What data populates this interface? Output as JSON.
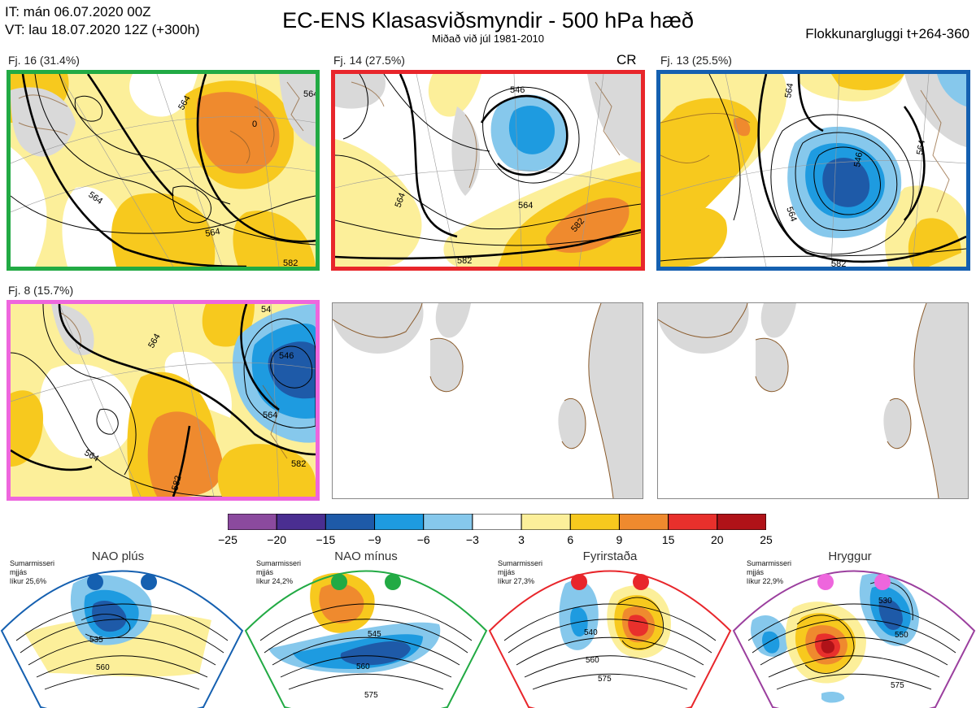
{
  "header": {
    "init_time": "IT: mán 06.07.2020 00Z",
    "valid_time": "VT: lau 18.07.2020 12Z  (+300h)",
    "title": "EC-ENS Klasasviðsmyndir - 500 hPa hæð",
    "subtitle": "Miðað við júl 1981-2010",
    "window": "Flokkunargluggi t+264-360"
  },
  "clusters": [
    {
      "label": "Fj. 16 (31.4%)",
      "color": "#22aa44",
      "contours": [
        "564",
        "564",
        "564",
        "564",
        "582",
        "0"
      ]
    },
    {
      "label": "Fj. 14 (27.5%)",
      "color": "#e8262b",
      "contours": [
        "546",
        "564",
        "564",
        "582",
        "582"
      ],
      "tag": "CR"
    },
    {
      "label": "Fj. 13 (25.5%)",
      "color": "#1560b0",
      "contours": [
        "564",
        "546",
        "564",
        "564",
        "582"
      ]
    },
    {
      "label": "Fj. 8 (15.7%)",
      "color": "#ee66dd",
      "contours": [
        "564",
        "546",
        "564",
        "564",
        "582",
        "582",
        "54"
      ]
    }
  ],
  "colorbar": {
    "ticks": [
      "−25",
      "−20",
      "−15",
      "−9",
      "−6",
      "−3",
      "3",
      "6",
      "9",
      "15",
      "20",
      "25"
    ],
    "colors": [
      "#8b4a9e",
      "#4a2e91",
      "#1e5aa8",
      "#1e9be0",
      "#86c8ec",
      "#ffffff",
      "#fcef9a",
      "#f7c91e",
      "#ef8a2e",
      "#e8302c",
      "#b01218"
    ]
  },
  "regimes": [
    {
      "name": "NAO plús",
      "season": "Sumarmisseri",
      "scope": "mjjás",
      "prob": "líkur 25,6%",
      "color": "#1560b0",
      "contours": [
        "535",
        "560"
      ]
    },
    {
      "name": "NAO mínus",
      "season": "Sumarmisseri",
      "scope": "mjjás",
      "prob": "líkur 24,2%",
      "color": "#22aa44",
      "contours": [
        "545",
        "560",
        "575"
      ]
    },
    {
      "name": "Fyrirstaða",
      "season": "Sumarmisseri",
      "scope": "mjjás",
      "prob": "líkur 27,3%",
      "color": "#e8262b",
      "contours": [
        "540",
        "560",
        "575"
      ]
    },
    {
      "name": "Hryggur",
      "season": "Sumarmisseri",
      "scope": "mjjás",
      "prob": "líkur 22,9%",
      "color": "#ee66dd",
      "contours": [
        "530",
        "550",
        "575"
      ]
    }
  ]
}
